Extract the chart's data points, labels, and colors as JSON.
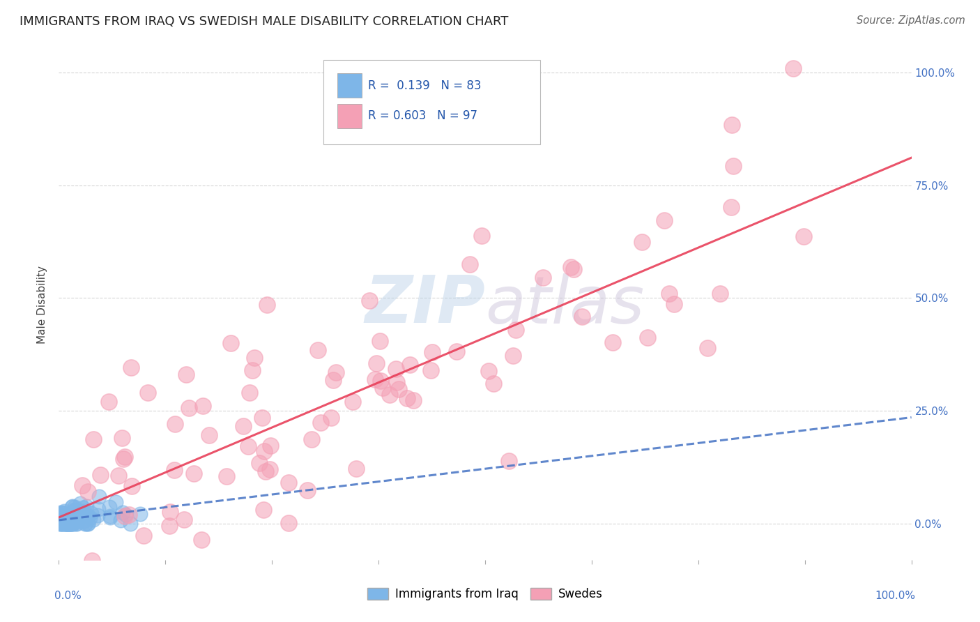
{
  "title": "IMMIGRANTS FROM IRAQ VS SWEDISH MALE DISABILITY CORRELATION CHART",
  "source": "Source: ZipAtlas.com",
  "ylabel": "Male Disability",
  "legend_label1": "Immigrants from Iraq",
  "legend_label2": "Swedes",
  "R1": 0.139,
  "N1": 83,
  "R2": 0.603,
  "N2": 97,
  "color_iraq": "#7EB6E8",
  "color_swedes": "#F4A0B5",
  "color_iraq_line": "#4472C4",
  "color_swedes_line": "#E8405A",
  "watermark": "ZIPatlas",
  "background_color": "#ffffff",
  "grid_color": "#cccccc",
  "xlim": [
    0.0,
    1.0
  ],
  "ylim": [
    -0.08,
    1.05
  ],
  "yticks": [
    0.0,
    0.25,
    0.5,
    0.75,
    1.0
  ],
  "ytick_labels": [
    "0.0%",
    "25.0%",
    "50.0%",
    "75.0%",
    "100.0%"
  ]
}
